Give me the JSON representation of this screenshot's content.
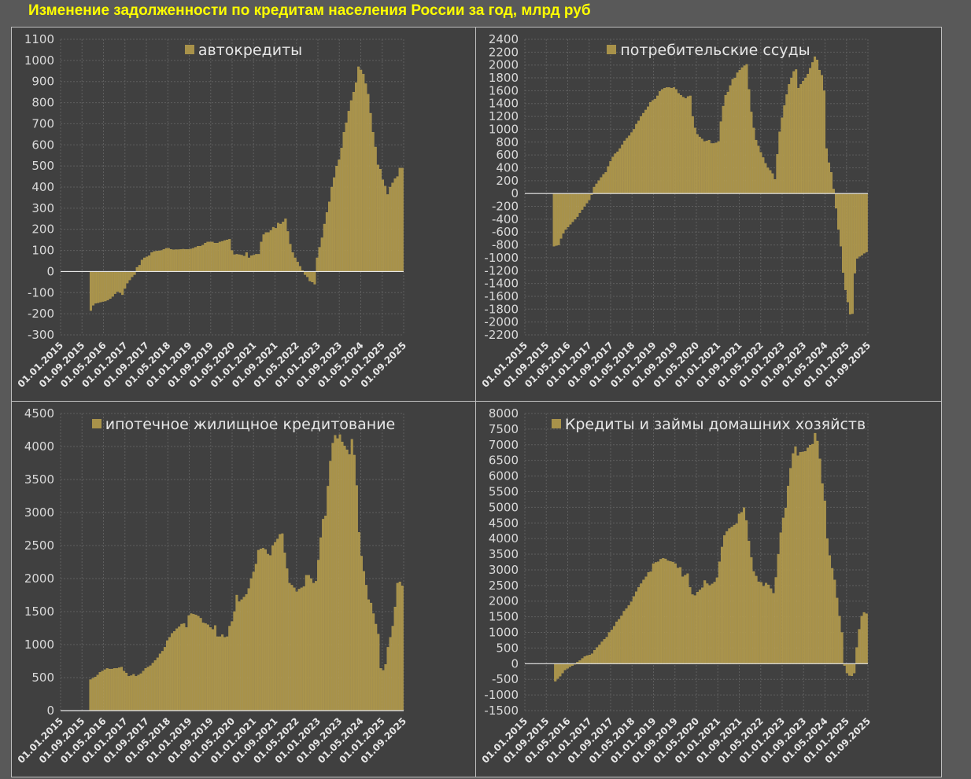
{
  "title": "Изменение задолженности по кредитам населения России за год, млрд руб",
  "colors": {
    "bar": "#a8924a",
    "bar_edge": "#c2aa5a",
    "grid": "#5e5e5e",
    "axis_zero": "#e8e8e8",
    "tick_text": "#d9d9d9",
    "title": "#ffff00"
  },
  "chart_data": [
    {
      "type": "bar",
      "legend": "автокредиты",
      "ylim": [
        -300,
        1100
      ],
      "ystep": 100,
      "x_tick_labels": [
        "01.01.2015",
        "01.09.2015",
        "01.05.2016",
        "01.01.2017",
        "01.09.2017",
        "01.05.2018",
        "01.01.2019",
        "01.09.2019",
        "01.05.2020",
        "01.01.2021",
        "01.09.2021",
        "01.05.2022",
        "01.01.2023",
        "01.09.2023",
        "01.05.2024",
        "01.01.2025",
        "01.09.2025"
      ],
      "x_start": "01.01.2015",
      "first_value_month": "01.01.2016",
      "frequency": "monthly",
      "labels_at_zero": true,
      "values": [
        -185,
        -160,
        -150,
        -148,
        -145,
        -142,
        -140,
        -135,
        -128,
        -118,
        -105,
        -95,
        -100,
        -110,
        -80,
        -55,
        -40,
        -25,
        -15,
        20,
        30,
        55,
        65,
        70,
        75,
        90,
        95,
        97,
        98,
        100,
        105,
        110,
        110,
        105,
        103,
        104,
        104,
        105,
        106,
        105,
        105,
        107,
        110,
        115,
        120,
        120,
        125,
        135,
        140,
        140,
        140,
        135,
        135,
        140,
        143,
        147,
        150,
        153,
        100,
        80,
        82,
        80,
        78,
        73,
        90,
        65,
        75,
        78,
        82,
        82,
        140,
        175,
        185,
        185,
        195,
        210,
        205,
        230,
        225,
        235,
        250,
        190,
        130,
        90,
        65,
        45,
        25,
        5,
        -15,
        -25,
        -45,
        -50,
        -60,
        65,
        115,
        160,
        225,
        280,
        330,
        400,
        445,
        500,
        530,
        585,
        660,
        705,
        760,
        810,
        850,
        895,
        970,
        955,
        935,
        890,
        840,
        750,
        660,
        590,
        505,
        485,
        435,
        405,
        365,
        400,
        420,
        440,
        450,
        490,
        490
      ]
    },
    {
      "type": "bar",
      "legend": "потребительские ссуды",
      "ylim": [
        -2200,
        2400
      ],
      "ystep": 200,
      "x_tick_labels": [
        "01.01.2015",
        "01.09.2015",
        "01.05.2016",
        "01.01.2017",
        "01.09.2017",
        "01.05.2018",
        "01.01.2019",
        "01.09.2019",
        "01.05.2020",
        "01.01.2021",
        "01.09.2021",
        "01.05.2022",
        "01.01.2023",
        "01.09.2023",
        "01.05.2024",
        "01.01.2025",
        "01.09.2025"
      ],
      "x_start": "01.01.2015",
      "first_value_month": "01.01.2016",
      "frequency": "monthly",
      "labels_at_zero": true,
      "values": [
        -820,
        -810,
        -800,
        -700,
        -620,
        -560,
        -520,
        -480,
        -440,
        -400,
        -360,
        -300,
        -250,
        -200,
        -150,
        -100,
        -20,
        100,
        150,
        200,
        250,
        300,
        330,
        420,
        500,
        570,
        620,
        650,
        700,
        760,
        820,
        860,
        900,
        950,
        1000,
        1080,
        1130,
        1200,
        1250,
        1300,
        1350,
        1420,
        1450,
        1470,
        1520,
        1590,
        1620,
        1640,
        1650,
        1650,
        1640,
        1650,
        1620,
        1560,
        1530,
        1500,
        1480,
        1510,
        1520,
        1200,
        1020,
        920,
        880,
        850,
        810,
        820,
        830,
        780,
        780,
        790,
        810,
        1120,
        1360,
        1530,
        1580,
        1680,
        1780,
        1800,
        1880,
        1920,
        1960,
        1990,
        2010,
        1620,
        1270,
        1020,
        830,
        740,
        640,
        560,
        470,
        400,
        360,
        310,
        220,
        610,
        960,
        1180,
        1370,
        1540,
        1700,
        1800,
        1900,
        1930,
        1640,
        1700,
        1750,
        1800,
        1860,
        1950,
        2040,
        2130,
        2080,
        1920,
        1840,
        1600,
        700,
        480,
        330,
        70,
        -230,
        -560,
        -820,
        -1230,
        -1500,
        -1690,
        -1880,
        -1870,
        -1240,
        -1010,
        -980,
        -960,
        -930,
        -910
      ]
    },
    {
      "type": "bar",
      "legend": "ипотечное жилищное кредитование",
      "ylim": [
        0,
        4500
      ],
      "ystep": 500,
      "x_tick_labels": [
        "01.01.2015",
        "01.09.2015",
        "01.05.2016",
        "01.01.2017",
        "01.09.2017",
        "01.05.2018",
        "01.01.2019",
        "01.09.2019",
        "01.05.2020",
        "01.01.2021",
        "01.09.2021",
        "01.05.2022",
        "01.01.2023",
        "01.09.2023",
        "01.05.2024",
        "01.01.2025",
        "01.09.2025"
      ],
      "x_start": "01.01.2015",
      "first_value_month": "01.01.2016",
      "frequency": "monthly",
      "labels_at_zero": true,
      "values": [
        470,
        490,
        510,
        540,
        580,
        600,
        620,
        640,
        630,
        630,
        640,
        640,
        650,
        660,
        600,
        570,
        520,
        530,
        550,
        520,
        540,
        560,
        600,
        640,
        660,
        680,
        720,
        760,
        800,
        860,
        900,
        960,
        1060,
        1110,
        1170,
        1200,
        1240,
        1270,
        1310,
        1320,
        1260,
        1440,
        1470,
        1460,
        1450,
        1430,
        1400,
        1330,
        1320,
        1300,
        1260,
        1230,
        1290,
        1120,
        1120,
        1150,
        1110,
        1120,
        1280,
        1350,
        1500,
        1750,
        1650,
        1680,
        1720,
        1760,
        1850,
        2000,
        2100,
        2220,
        2430,
        2450,
        2460,
        2440,
        2370,
        2350,
        2500,
        2550,
        2600,
        2670,
        2680,
        2390,
        2150,
        1930,
        1900,
        1860,
        1800,
        1840,
        1860,
        1880,
        2050,
        2050,
        2000,
        1930,
        1960,
        2280,
        2620,
        2900,
        2950,
        3400,
        3780,
        4050,
        4170,
        4120,
        4180,
        4070,
        4010,
        3950,
        3880,
        4110,
        3870,
        3410,
        2700,
        2340,
        2110,
        1900,
        1680,
        1630,
        1470,
        1310,
        1160,
        640,
        610,
        700,
        960,
        1110,
        1280,
        1570,
        1930,
        1950,
        1890
      ]
    },
    {
      "type": "bar",
      "legend": "Кредиты и займы домашних хозяйств",
      "ylim": [
        -1500,
        8000
      ],
      "ystep": 500,
      "x_tick_labels": [
        "01.01.2015",
        "01.09.2015",
        "01.05.2016",
        "01.01.2017",
        "01.09.2017",
        "01.05.2018",
        "01.01.2019",
        "01.09.2019",
        "01.05.2020",
        "01.01.2021",
        "01.09.2021",
        "01.05.2022",
        "01.01.2023",
        "01.09.2023",
        "01.05.2024",
        "01.01.2025",
        "01.09.2025"
      ],
      "x_start": "01.01.2015",
      "first_value_month": "01.01.2016",
      "frequency": "monthly",
      "labels_at_zero": true,
      "values": [
        -560,
        -480,
        -400,
        -300,
        -200,
        -150,
        -100,
        -60,
        -20,
        50,
        100,
        170,
        230,
        260,
        280,
        320,
        430,
        520,
        600,
        700,
        780,
        850,
        1000,
        1080,
        1200,
        1340,
        1420,
        1530,
        1680,
        1760,
        1860,
        1980,
        2150,
        2300,
        2440,
        2560,
        2680,
        2780,
        2920,
        2940,
        3200,
        3240,
        3260,
        3340,
        3370,
        3350,
        3290,
        3270,
        3250,
        3200,
        3060,
        3080,
        2780,
        2830,
        2880,
        2440,
        2210,
        2180,
        2290,
        2360,
        2430,
        2660,
        2560,
        2500,
        2550,
        2610,
        2750,
        3260,
        3730,
        4100,
        4230,
        4320,
        4370,
        4430,
        4480,
        4790,
        4840,
        4990,
        4580,
        3920,
        3400,
        2950,
        2800,
        2620,
        2600,
        2480,
        2580,
        2520,
        2400,
        2250,
        2760,
        3500,
        4190,
        4660,
        4980,
        5680,
        6250,
        6720,
        6940,
        6650,
        6760,
        6770,
        6790,
        6900,
        6990,
        7020,
        7370,
        7120,
        6550,
        5760,
        5210,
        4000,
        3460,
        3050,
        2680,
        2100,
        1520,
        1000,
        -60,
        -300,
        -380,
        -390,
        -300,
        520,
        1100,
        1520,
        1640,
        1600
      ]
    }
  ]
}
